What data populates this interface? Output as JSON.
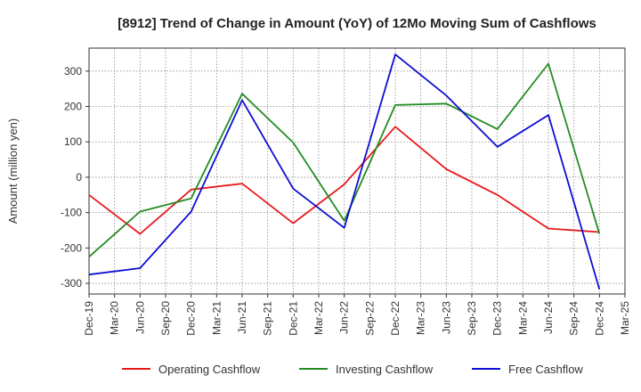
{
  "chart_data": {
    "type": "line",
    "title": "[8912]  Trend of Change in Amount (YoY) of 12Mo Moving Sum of Cashflows",
    "xlabel": "",
    "ylabel": "Amount (million yen)",
    "ylim": [
      -330,
      365
    ],
    "yticks": [
      300,
      200,
      100,
      0,
      -100,
      -200,
      -300
    ],
    "x_tick_labels": [
      "Dec-19",
      "Mar-20",
      "Jun-20",
      "Sep-20",
      "Dec-20",
      "Mar-21",
      "Jun-21",
      "Sep-21",
      "Dec-21",
      "Mar-22",
      "Jun-22",
      "Sep-22",
      "Dec-22",
      "Mar-23",
      "Jun-23",
      "Sep-23",
      "Dec-23",
      "Mar-24",
      "Jun-24",
      "Sep-24",
      "Dec-24",
      "Mar-25"
    ],
    "grid": true,
    "legend_position": "bottom",
    "series": [
      {
        "name": "Operating Cashflow",
        "color": "#e8191d",
        "points": [
          [
            0,
            -50
          ],
          [
            2,
            -160
          ],
          [
            4,
            -35
          ],
          [
            6,
            -18
          ],
          [
            8,
            -130
          ],
          [
            10,
            -20
          ],
          [
            12,
            143
          ],
          [
            14,
            23
          ],
          [
            16,
            -50
          ],
          [
            18,
            -145
          ],
          [
            20,
            -155
          ]
        ]
      },
      {
        "name": "Investing Cashflow",
        "color": "#238c23",
        "points": [
          [
            0,
            -225
          ],
          [
            2,
            -97
          ],
          [
            4,
            -60
          ],
          [
            6,
            236
          ],
          [
            8,
            98
          ],
          [
            10,
            -123
          ],
          [
            12,
            204
          ],
          [
            14,
            208
          ],
          [
            16,
            136
          ],
          [
            18,
            321
          ],
          [
            20,
            -160
          ]
        ]
      },
      {
        "name": "Free Cashflow",
        "color": "#0e0ed2",
        "points": [
          [
            0,
            -275
          ],
          [
            2,
            -257
          ],
          [
            4,
            -97
          ],
          [
            6,
            218
          ],
          [
            8,
            -32
          ],
          [
            10,
            -143
          ],
          [
            12,
            347
          ],
          [
            14,
            231
          ],
          [
            16,
            86
          ],
          [
            18,
            176
          ],
          [
            20,
            -317
          ]
        ]
      }
    ]
  }
}
